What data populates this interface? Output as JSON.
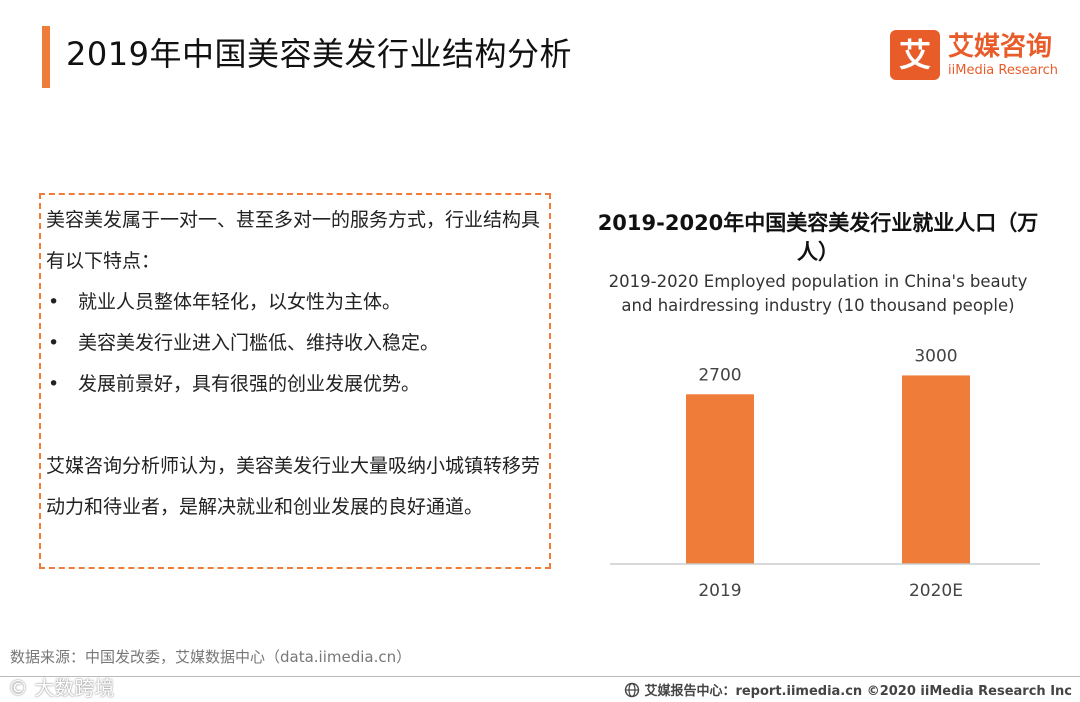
{
  "header": {
    "title": "2019年中国美容美发行业结构分析"
  },
  "logo": {
    "mark_char": "艾",
    "name_cn": "艾媒咨询",
    "name_en": "iiMedia Research",
    "brand_color": "#e85c2a"
  },
  "text_panel": {
    "intro": "美容美发属于一对一、甚至多对一的服务方式，行业结构具有以下特点：",
    "bullet_symbol": "•",
    "bullets": [
      "就业人员整体年轻化，以女性为主体。",
      "美容美发行业进入门槛低、维持收入稳定。",
      "发展前景好，具有很强的创业发展优势。"
    ],
    "analysis": "艾媒咨询分析师认为，美容美发行业大量吸纳小城镇转移劳动力和待业者，是解决就业和创业发展的良好通道。"
  },
  "chart_data": {
    "type": "bar",
    "title": "2019-2020年中国美容美发行业就业人口（万人）",
    "subtitle": "2019-2020 Employed population in China's beauty and hairdressing industry (10 thousand people)",
    "categories": [
      "2019",
      "2020E"
    ],
    "values": [
      2700,
      3000
    ],
    "data_labels": [
      "2700",
      "3000"
    ],
    "xlabel": "",
    "ylabel": "",
    "ylim": [
      0,
      3500
    ],
    "grid": false,
    "legend": "none",
    "bar_color": "#ef7d39"
  },
  "footer": {
    "source": "数据来源：中国发改委，艾媒数据中心（data.iimedia.cn）",
    "watermark": "© 大数跨境",
    "report_center": "艾媒报告中心：report.iimedia.cn ©2020 iiMedia Research Inc",
    "report_icon": "globe-icon"
  },
  "colors": {
    "accent": "#ef7d39"
  }
}
